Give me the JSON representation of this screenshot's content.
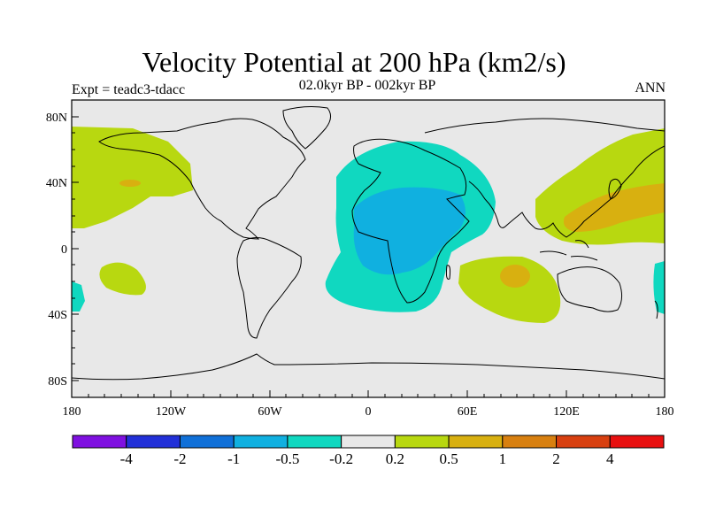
{
  "title": "Velocity Potential at 200 hPa (km2/s)",
  "subtitle": "02.0kyr BP - 002kyr BP",
  "left_label": "Expt = teadc3-tdacc",
  "right_label": "ANN",
  "lat_ticks": [
    "80N",
    "40N",
    "0",
    "40S",
    "80S"
  ],
  "lon_ticks": [
    "180",
    "120W",
    "60W",
    "0",
    "60E",
    "120E",
    "180"
  ],
  "colorbar": {
    "colors": [
      "#7f10e0",
      "#2230d8",
      "#1070d8",
      "#10b0e0",
      "#10d8c0",
      "#e8e8e8",
      "#b8d810",
      "#d8b010",
      "#d88010",
      "#d84010",
      "#e81010"
    ],
    "labels": [
      "-4",
      "-2",
      "-1",
      "-0.5",
      "-0.2",
      "0.2",
      "0.5",
      "1",
      "2",
      "4"
    ]
  },
  "colors": {
    "ocean_background": "#e8e8e8",
    "coast": "#000000",
    "neg_light": "#10d8c0",
    "neg_mid": "#10b0e0",
    "pos_light": "#b8d810",
    "pos_mid": "#d8b010"
  }
}
